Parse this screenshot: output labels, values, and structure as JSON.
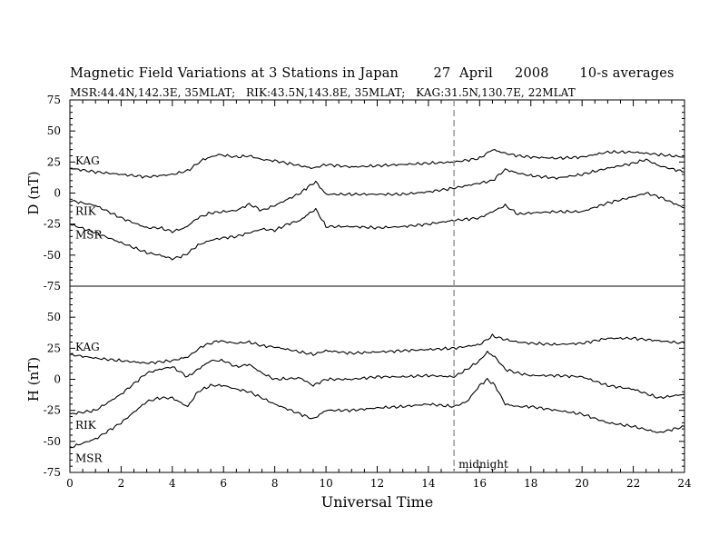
{
  "chart_data": {
    "type": "line",
    "title": "Magnetic Field Variations at 3 Stations in Japan        27  April     2008       10-s averages",
    "subtitle": "MSR:44.4N,142.3E, 35MLAT;   RIK:43.5N,143.8E, 35MLAT;   KAG:31.5N,130.7E, 22MLAT",
    "xlabel": "Universal Time",
    "xlim": [
      0,
      24
    ],
    "xticks": [
      0,
      2,
      4,
      6,
      8,
      10,
      12,
      14,
      16,
      18,
      20,
      22,
      24
    ],
    "xtick_labels": [
      "0",
      "2",
      "4",
      "6",
      "8",
      "10",
      "12",
      "14",
      "16",
      "18",
      "20",
      "22",
      "24"
    ],
    "marker": {
      "x": 15,
      "label": "midnight",
      "style": "dashed",
      "color": "#999999"
    },
    "line_color": "#000000",
    "panels": [
      {
        "ylabel": "D (nT)",
        "ylim": [
          -75,
          75
        ],
        "yticks": [
          75,
          50,
          25,
          0,
          -25,
          -50,
          -75
        ],
        "ytick_labels": [
          "75",
          "50",
          "25",
          "0",
          "-25",
          "-50",
          "-75"
        ],
        "series": [
          {
            "name": "KAG",
            "x": [
              0,
              1,
              2,
              3,
              4,
              4.6,
              5.2,
              5.8,
              6.5,
              7,
              7.5,
              8,
              8.5,
              9,
              9.5,
              10,
              11,
              12,
              13,
              14,
              15,
              16,
              16.5,
              17,
              17.5,
              18,
              19,
              20,
              21,
              22,
              23,
              24
            ],
            "values": [
              20,
              17,
              15,
              13,
              15,
              18,
              27,
              31,
              29,
              30,
              27,
              26,
              24,
              22,
              20,
              23,
              21,
              22,
              23,
              24,
              25,
              28,
              35,
              32,
              30,
              29,
              28,
              29,
              33,
              33,
              31,
              29
            ]
          },
          {
            "name": "RIK",
            "x": [
              0,
              1,
              2,
              3,
              3.5,
              4,
              4.5,
              5,
              5.5,
              6,
              6.5,
              7,
              7.5,
              8,
              8.5,
              9,
              9.3,
              9.6,
              10,
              11,
              12,
              13,
              14,
              15,
              16,
              16.5,
              17,
              17.5,
              18,
              19,
              20,
              21,
              22,
              22.5,
              23,
              24
            ],
            "values": [
              -6,
              -10,
              -20,
              -28,
              -28,
              -31,
              -28,
              -20,
              -16,
              -15,
              -14,
              -9,
              -14,
              -10,
              -5,
              0,
              5,
              9,
              -1,
              -1,
              -1,
              -1,
              1,
              4,
              8,
              10,
              19,
              16,
              14,
              12,
              15,
              20,
              24,
              27,
              22,
              17
            ]
          },
          {
            "name": "MSR",
            "x": [
              0,
              1,
              2,
              3,
              3.5,
              4,
              4.5,
              5,
              5.5,
              6,
              6.5,
              7,
              7.5,
              8,
              8.5,
              9,
              9.3,
              9.6,
              10,
              11,
              12,
              13,
              14,
              15,
              16,
              17,
              17.5,
              18,
              19,
              20,
              21,
              22,
              22.5,
              23,
              24
            ],
            "values": [
              -25,
              -32,
              -40,
              -48,
              -50,
              -53,
              -50,
              -42,
              -38,
              -36,
              -35,
              -32,
              -29,
              -30,
              -25,
              -22,
              -17,
              -13,
              -27,
              -27,
              -28,
              -27,
              -25,
              -22,
              -20,
              -10,
              -17,
              -16,
              -15,
              -15,
              -8,
              -3,
              0,
              -3,
              -12
            ]
          }
        ]
      },
      {
        "ylabel": "H (nT)",
        "ylim": [
          -75,
          75
        ],
        "yticks": [
          75,
          50,
          25,
          0,
          -25,
          -50,
          -75
        ],
        "ytick_labels": [
          "75",
          "50",
          "25",
          "0",
          "-25",
          "-50",
          "-75"
        ],
        "series": [
          {
            "name": "KAG",
            "x": [
              0,
              1,
              2,
              3,
              4,
              4.6,
              5.2,
              5.8,
              6.5,
              7,
              7.5,
              8,
              8.5,
              9,
              9.5,
              10,
              11,
              12,
              13,
              14,
              15,
              16,
              16.5,
              17,
              17.5,
              18,
              19,
              20,
              21,
              22,
              23,
              24
            ],
            "values": [
              20,
              17,
              15,
              13,
              15,
              18,
              27,
              31,
              29,
              30,
              27,
              26,
              24,
              22,
              20,
              23,
              21,
              22,
              23,
              24,
              25,
              28,
              35,
              32,
              30,
              29,
              28,
              29,
              33,
              33,
              31,
              29
            ]
          },
          {
            "name": "RIK",
            "x": [
              0,
              1,
              2,
              3,
              3.5,
              4,
              4.6,
              5,
              5.5,
              6,
              6.5,
              7,
              7.5,
              8,
              9,
              9.5,
              10,
              11,
              12,
              13,
              14,
              15,
              15.5,
              16,
              16.3,
              16.6,
              17,
              17.5,
              18,
              19,
              20,
              21,
              22,
              23,
              24
            ],
            "values": [
              -28,
              -25,
              -12,
              5,
              8,
              10,
              2,
              8,
              15,
              15,
              10,
              12,
              5,
              0,
              1,
              -5,
              0,
              0,
              2,
              2,
              3,
              2,
              8,
              15,
              22,
              18,
              8,
              5,
              3,
              3,
              2,
              -5,
              -8,
              -15,
              -12
            ]
          },
          {
            "name": "MSR",
            "x": [
              0,
              1,
              2,
              3,
              3.5,
              4,
              4.6,
              5,
              5.5,
              6,
              6.5,
              7,
              7.5,
              8,
              9,
              9.5,
              10,
              11,
              12,
              13,
              14,
              15,
              15.5,
              16,
              16.3,
              16.6,
              17,
              17.5,
              18,
              19,
              20,
              21,
              22,
              23,
              24
            ],
            "values": [
              -55,
              -48,
              -35,
              -18,
              -15,
              -15,
              -22,
              -10,
              -5,
              -5,
              -8,
              -10,
              -15,
              -20,
              -28,
              -32,
              -25,
              -25,
              -23,
              -22,
              -20,
              -22,
              -18,
              -5,
              0,
              -5,
              -20,
              -22,
              -22,
              -25,
              -28,
              -35,
              -38,
              -43,
              -38
            ]
          }
        ]
      }
    ]
  }
}
